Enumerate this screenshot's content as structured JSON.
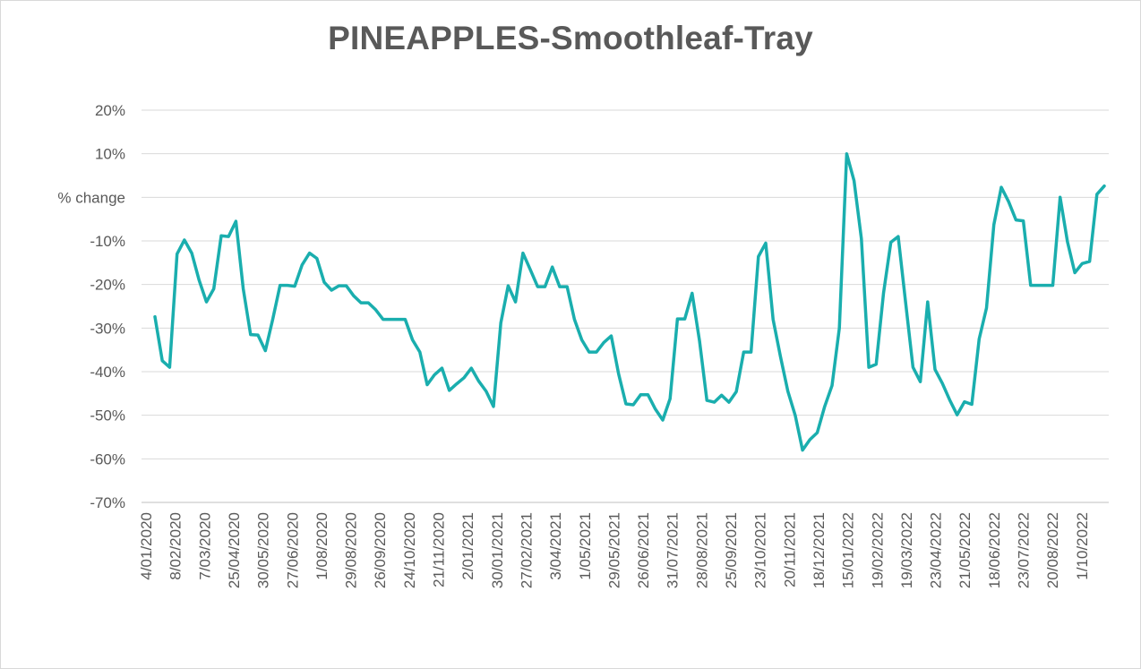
{
  "chart_data": {
    "type": "line",
    "title": "PINEAPPLES-Smoothleaf-Tray",
    "xlabel": "",
    "ylabel": "",
    "ylim": [
      -70,
      20
    ],
    "y_ticks": [
      "20%",
      "10%",
      "% change",
      "-10%",
      "-20%",
      "-30%",
      "-40%",
      "-50%",
      "-60%",
      "-70%"
    ],
    "x_ticks": [
      "4/01/2020",
      "8/02/2020",
      "7/03/2020",
      "25/04/2020",
      "30/05/2020",
      "27/06/2020",
      "1/08/2020",
      "29/08/2020",
      "26/09/2020",
      "24/10/2020",
      "21/11/2020",
      "2/01/2021",
      "30/01/2021",
      "27/02/2021",
      "3/04/2021",
      "1/05/2021",
      "29/05/2021",
      "26/06/2021",
      "31/07/2021",
      "28/08/2021",
      "25/09/2021",
      "23/10/2021",
      "20/11/2021",
      "18/12/2021",
      "15/01/2022",
      "19/02/2022",
      "19/03/2022",
      "23/04/2022",
      "21/05/2022",
      "18/06/2022",
      "23/07/2022",
      "20/08/2022",
      "1/10/2022"
    ],
    "grid": true,
    "legend": "none",
    "colors": {
      "line": "#1aaeae",
      "grid": "#d9d9d9",
      "text": "#595959"
    },
    "series": [
      {
        "values": [
          -27.4,
          -37.5,
          -39.0,
          -13.0,
          -9.8,
          -12.8,
          -19.0,
          -24.0,
          -21.0,
          -8.8,
          -9.0,
          -5.5,
          -21.0,
          -31.5,
          -31.6,
          -35.2,
          -28.0,
          -20.2,
          -20.2,
          -20.4,
          -15.5,
          -12.8,
          -14.0,
          -19.5,
          -21.3,
          -20.3,
          -20.3,
          -22.6,
          -24.2,
          -24.2,
          -25.8,
          -28.0,
          -28.0,
          -28.0,
          -28.0,
          -32.7,
          -35.5,
          -43.0,
          -40.7,
          -39.2,
          -44.3,
          -42.8,
          -41.4,
          -39.2,
          -42.2,
          -44.5,
          -48.0,
          -28.8,
          -20.3,
          -24.0,
          -12.8,
          -16.6,
          -20.5,
          -20.5,
          -16.0,
          -20.5,
          -20.5,
          -28.0,
          -32.7,
          -35.5,
          -35.5,
          -33.3,
          -31.8,
          -40.5,
          -47.4,
          -47.6,
          -45.3,
          -45.3,
          -48.6,
          -51.1,
          -46.2,
          -27.9,
          -27.9,
          -22.0,
          -33.0,
          -46.6,
          -47.0,
          -45.4,
          -47.0,
          -44.6,
          -35.5,
          -35.5,
          -13.6,
          -10.5,
          -28.0,
          -36.5,
          -44.5,
          -50.0,
          -58.0,
          -55.6,
          -54.0,
          -48.0,
          -43.2,
          -30.0,
          10.0,
          3.8,
          -9.5,
          -39.0,
          -38.3,
          -22.0,
          -10.3,
          -9.0,
          -24.0,
          -39.0,
          -42.3,
          -24.0,
          -39.5,
          -42.7,
          -46.5,
          -49.9,
          -46.9,
          -47.5,
          -32.5,
          -25.4,
          -6.3,
          2.3,
          -1.0,
          -5.2,
          -5.4,
          -20.2,
          -20.2,
          -20.2,
          -20.2,
          0.0,
          -10.2,
          -17.3,
          -15.2,
          -14.7,
          0.7,
          2.6
        ]
      }
    ]
  }
}
